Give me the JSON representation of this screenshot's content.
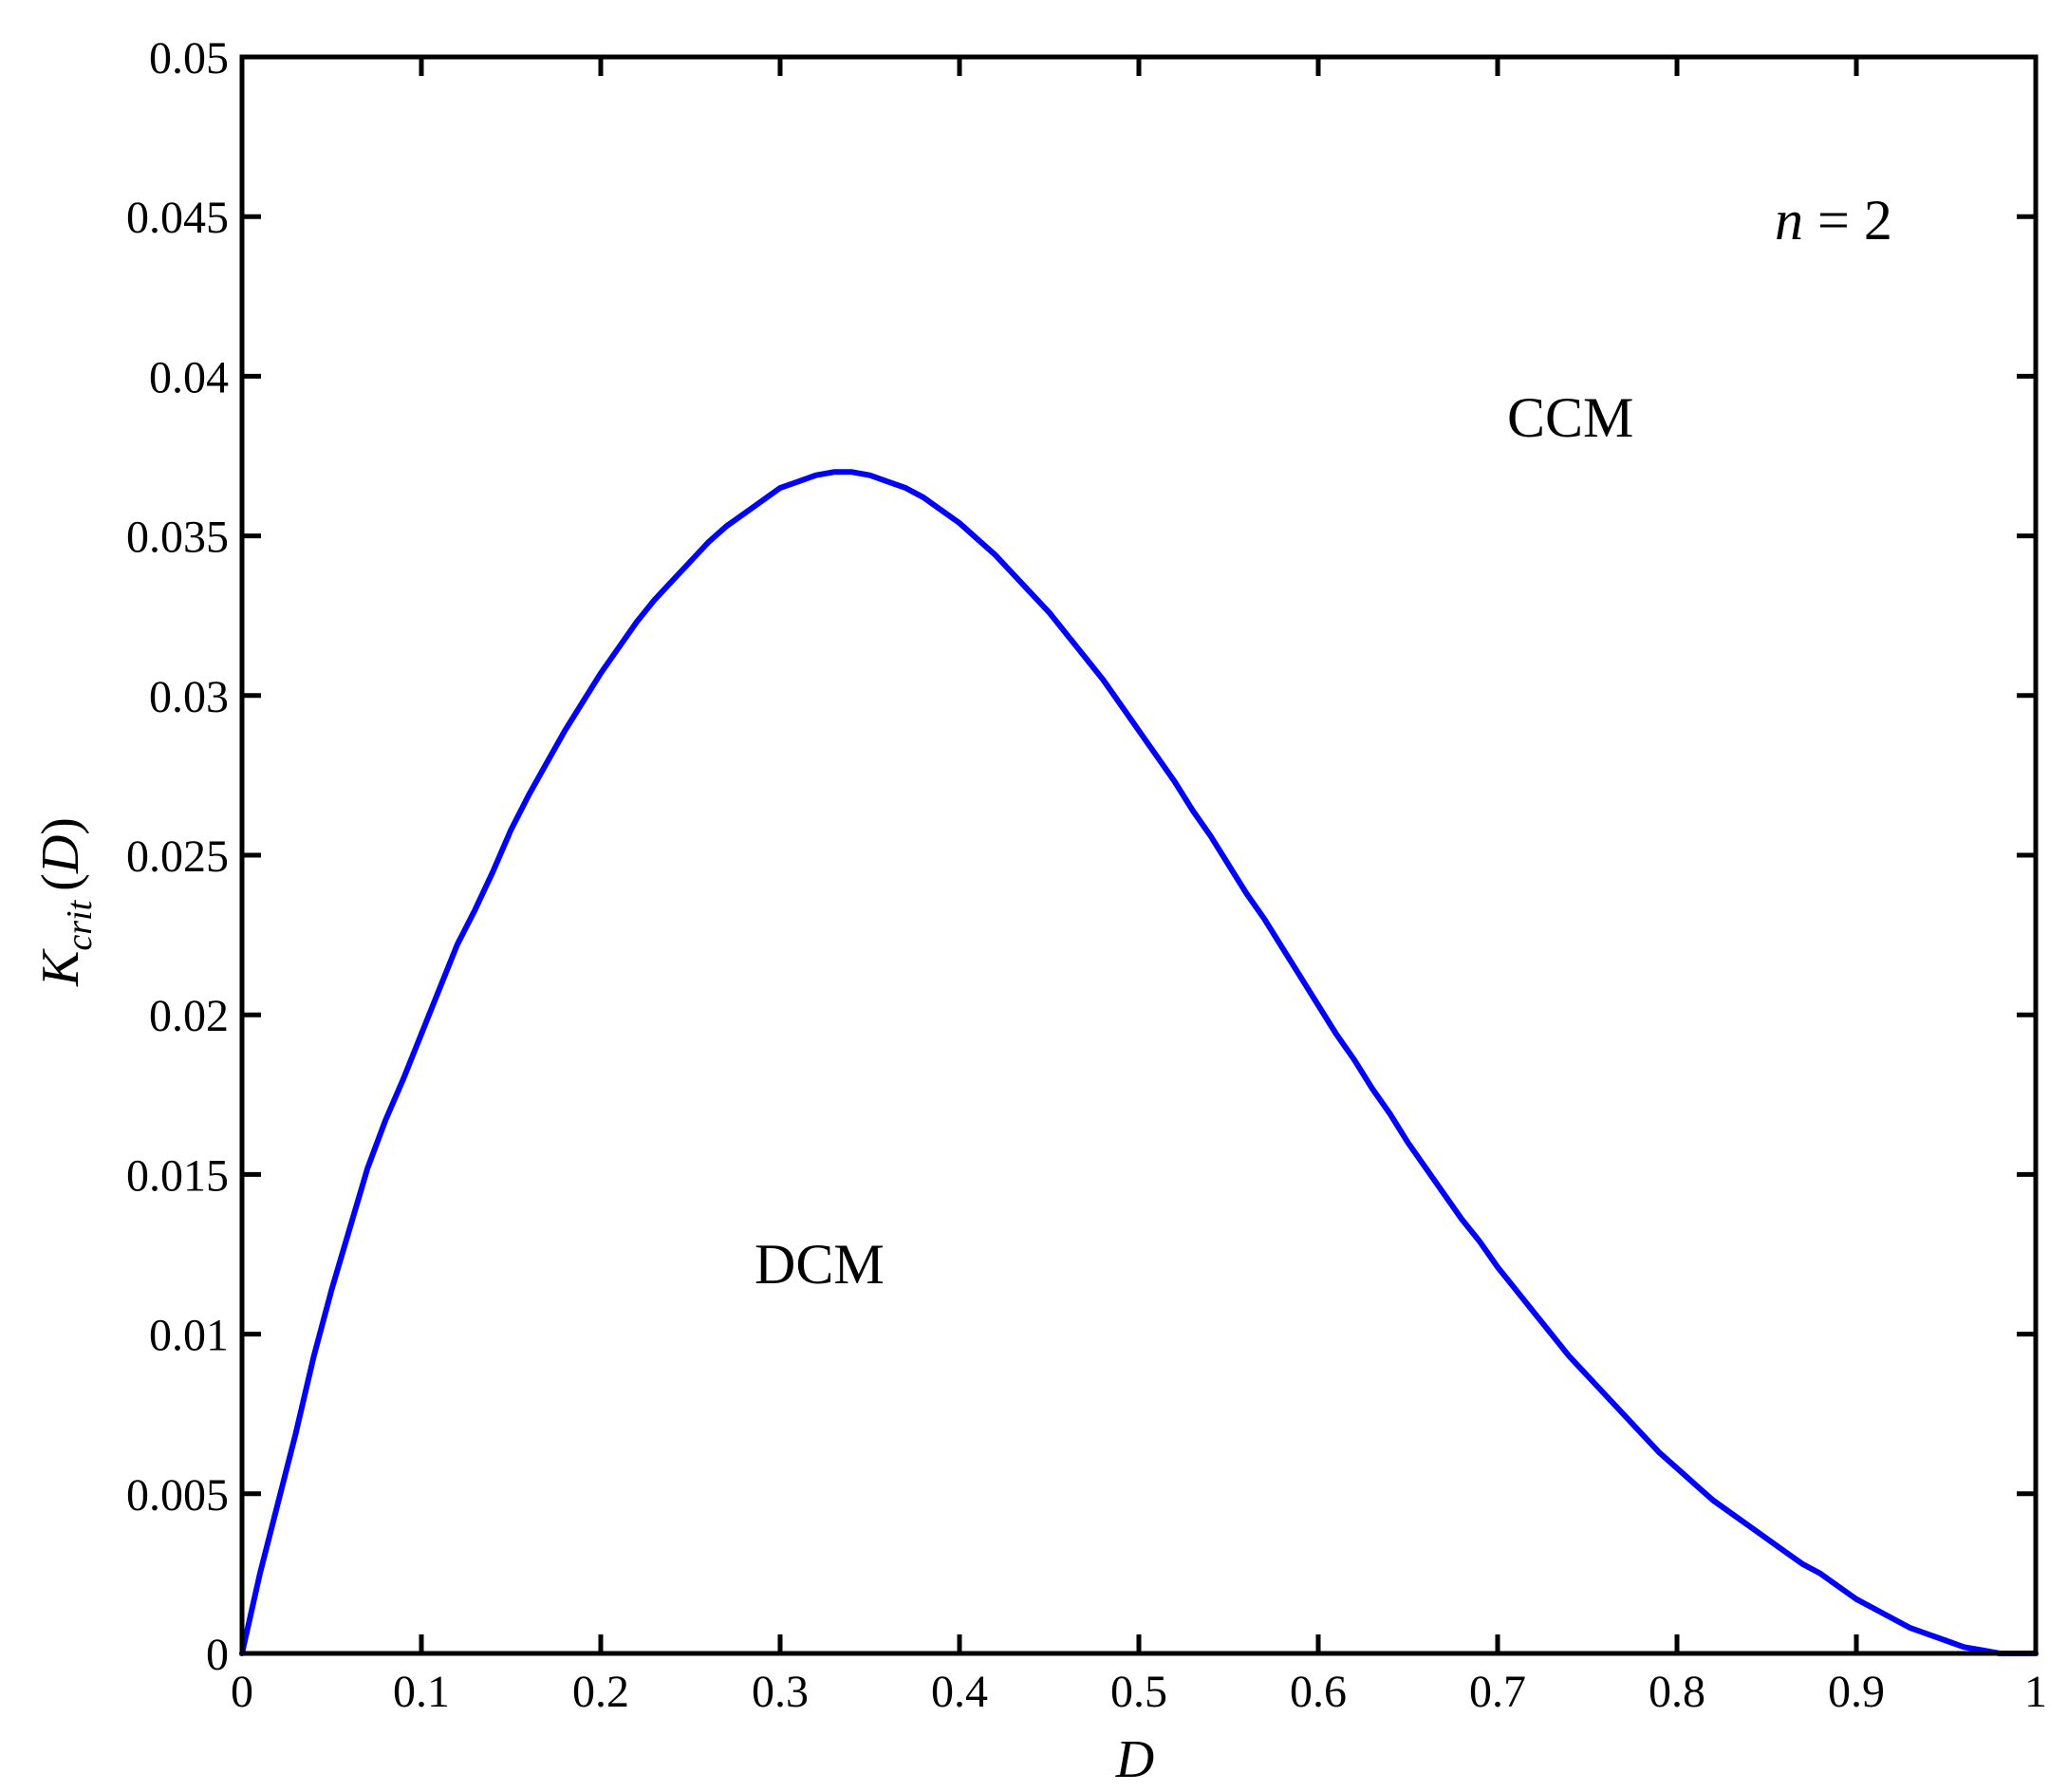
{
  "chart_data": {
    "type": "line",
    "title": "",
    "xlabel": "D",
    "ylabel": {
      "main": "K",
      "subscript": "crit",
      "suffix_open": "(",
      "suffix_var": "D",
      "suffix_close": ")"
    },
    "xlim": [
      0,
      1
    ],
    "ylim": [
      0,
      0.05
    ],
    "grid": false,
    "legend": "none",
    "line_color": "#0000ff",
    "x_ticks": [
      "0",
      "0.1",
      "0.2",
      "0.3",
      "0.4",
      "0.5",
      "0.6",
      "0.7",
      "0.8",
      "0.9",
      "1"
    ],
    "y_ticks": [
      "0",
      "0.005",
      "0.01",
      "0.015",
      "0.02",
      "0.025",
      "0.03",
      "0.035",
      "0.04",
      "0.045",
      "0.05"
    ],
    "annotations": {
      "n_var": "n",
      "n_rest": " = 2",
      "ccm": "CCM",
      "dcm": "DCM"
    },
    "series": [
      {
        "x": [
          0,
          0.01,
          0.02,
          0.03,
          0.04,
          0.05,
          0.06,
          0.07,
          0.08,
          0.09,
          0.1,
          0.11,
          0.12,
          0.13,
          0.14,
          0.15,
          0.16,
          0.17,
          0.18,
          0.19,
          0.2,
          0.21,
          0.22,
          0.23,
          0.24,
          0.25,
          0.26,
          0.27,
          0.28,
          0.29,
          0.3,
          0.31,
          0.32,
          0.33,
          0.34,
          0.35,
          0.36,
          0.37,
          0.38,
          0.39,
          0.4,
          0.41,
          0.42,
          0.43,
          0.44,
          0.45,
          0.46,
          0.47,
          0.48,
          0.49,
          0.5,
          0.51,
          0.52,
          0.53,
          0.54,
          0.55,
          0.56,
          0.57,
          0.58,
          0.59,
          0.6,
          0.61,
          0.62,
          0.63,
          0.64,
          0.65,
          0.66,
          0.67,
          0.68,
          0.69,
          0.7,
          0.71,
          0.72,
          0.73,
          0.74,
          0.75,
          0.76,
          0.77,
          0.78,
          0.79,
          0.8,
          0.81,
          0.82,
          0.83,
          0.84,
          0.85,
          0.86,
          0.87,
          0.88,
          0.89,
          0.9,
          0.91,
          0.92,
          0.93,
          0.94,
          0.95,
          0.96,
          0.97,
          0.98,
          0.99,
          1
        ],
        "y": [
          0,
          0.0025,
          0.0047,
          0.0069,
          0.0093,
          0.0114,
          0.0133,
          0.0152,
          0.0167,
          0.018,
          0.0194,
          0.0208,
          0.0222,
          0.0233,
          0.0245,
          0.0258,
          0.0269,
          0.0279,
          0.0289,
          0.0298,
          0.0307,
          0.0315,
          0.0323,
          0.033,
          0.0336,
          0.0342,
          0.0348,
          0.0353,
          0.0357,
          0.0361,
          0.0365,
          0.0367,
          0.0369,
          0.037,
          0.037,
          0.0369,
          0.0367,
          0.0365,
          0.0362,
          0.0358,
          0.0354,
          0.0349,
          0.0344,
          0.0338,
          0.0332,
          0.0326,
          0.0319,
          0.0312,
          0.0305,
          0.0297,
          0.0289,
          0.0281,
          0.0273,
          0.0264,
          0.0256,
          0.0247,
          0.0238,
          0.023,
          0.0221,
          0.0212,
          0.0203,
          0.0194,
          0.0186,
          0.0177,
          0.0169,
          0.016,
          0.0152,
          0.0144,
          0.0136,
          0.0129,
          0.0121,
          0.0114,
          0.0107,
          0.01,
          0.0093,
          0.0087,
          0.0081,
          0.0075,
          0.0069,
          0.0063,
          0.0058,
          0.0053,
          0.0048,
          0.0044,
          0.004,
          0.0036,
          0.0032,
          0.0028,
          0.0025,
          0.0021,
          0.0017,
          0.0014,
          0.0011,
          0.0008,
          0.0006,
          0.0004,
          0.0002,
          0.0001,
          0,
          0,
          0
        ]
      }
    ]
  }
}
